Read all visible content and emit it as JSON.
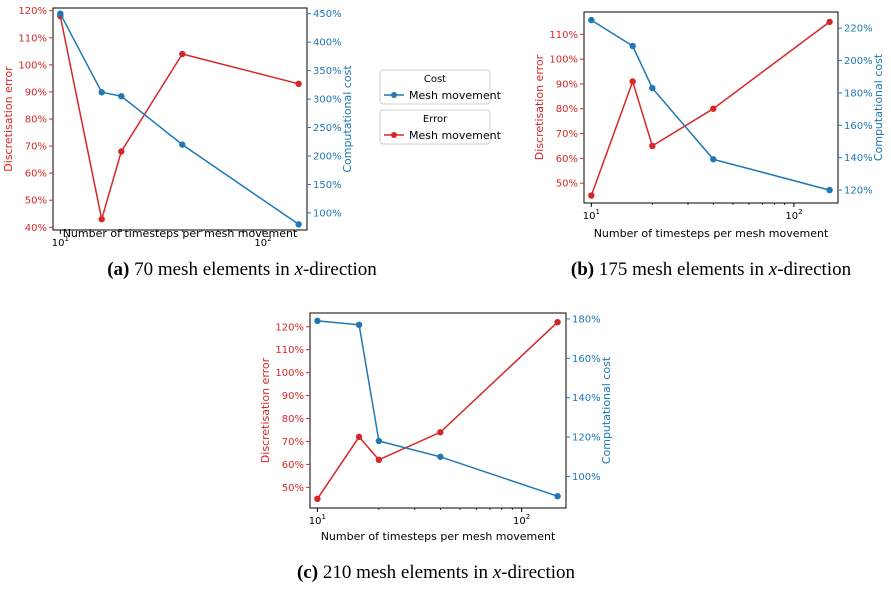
{
  "colors": {
    "error": "#d62728",
    "cost": "#1f77b4"
  },
  "legend": {
    "groups": [
      {
        "title": "Cost",
        "label": "Mesh movement",
        "series": "cost"
      },
      {
        "title": "Error",
        "label": "Mesh movement",
        "series": "error"
      }
    ]
  },
  "chart_data": [
    {
      "type": "line",
      "caption": {
        "tag": "(a)",
        "prefix": " 70 mesh elements in ",
        "italic": "x",
        "suffix": "-direction"
      },
      "xlabel": "Number of timesteps per mesh movement",
      "xscale": "log",
      "xlim": [
        9.2,
        165
      ],
      "xticks": [
        {
          "value": 10,
          "base": "10",
          "exp": "1"
        },
        {
          "value": 100,
          "base": "10",
          "exp": "2"
        }
      ],
      "ylabel_left": "Discretisation error",
      "ylabel_right": "Computational cost",
      "ylim_left": [
        39,
        121
      ],
      "ylim_right": [
        70,
        460
      ],
      "yticks_left": [
        40,
        50,
        60,
        70,
        80,
        90,
        100,
        110,
        120
      ],
      "yticks_right": [
        100,
        150,
        200,
        250,
        300,
        350,
        400,
        450
      ],
      "tick_suffix": "%",
      "x": [
        10,
        16,
        20,
        40,
        150
      ],
      "series": [
        {
          "key": "error",
          "axis": "left",
          "values": [
            118,
            43,
            68,
            104,
            93
          ]
        },
        {
          "key": "cost",
          "axis": "right",
          "values": [
            450,
            312,
            305,
            220,
            80
          ]
        }
      ]
    },
    {
      "type": "line",
      "caption": {
        "tag": "(b)",
        "prefix": " 175 mesh elements in ",
        "italic": "x",
        "suffix": "-direction"
      },
      "xlabel": "Number of timesteps per mesh movement",
      "xscale": "log",
      "xlim": [
        9.2,
        165
      ],
      "xticks": [
        {
          "value": 10,
          "base": "10",
          "exp": "1"
        },
        {
          "value": 100,
          "base": "10",
          "exp": "2"
        }
      ],
      "ylabel_left": "Discretisation error",
      "ylabel_right": "Computational cost",
      "ylim_left": [
        42,
        119
      ],
      "ylim_right": [
        112,
        230
      ],
      "yticks_left": [
        50,
        60,
        70,
        80,
        90,
        100,
        110
      ],
      "yticks_right": [
        120,
        140,
        160,
        180,
        200,
        220
      ],
      "tick_suffix": "%",
      "x": [
        10,
        16,
        20,
        40,
        150
      ],
      "series": [
        {
          "key": "error",
          "axis": "left",
          "values": [
            45,
            91,
            65,
            80,
            115
          ]
        },
        {
          "key": "cost",
          "axis": "right",
          "values": [
            225,
            209,
            183,
            139,
            120
          ]
        }
      ]
    },
    {
      "type": "line",
      "caption": {
        "tag": "(c)",
        "prefix": " 210 mesh elements in ",
        "italic": "x",
        "suffix": "-direction"
      },
      "xlabel": "Number of timesteps per mesh movement",
      "xscale": "log",
      "xlim": [
        9.2,
        165
      ],
      "xticks": [
        {
          "value": 10,
          "base": "10",
          "exp": "1"
        },
        {
          "value": 100,
          "base": "10",
          "exp": "2"
        }
      ],
      "ylabel_left": "Discretisation error",
      "ylabel_right": "Computational cost",
      "ylim_left": [
        41,
        126
      ],
      "ylim_right": [
        84,
        183
      ],
      "yticks_left": [
        50,
        60,
        70,
        80,
        90,
        100,
        110,
        120
      ],
      "yticks_right": [
        100,
        120,
        140,
        160,
        180
      ],
      "tick_suffix": "%",
      "x": [
        10,
        16,
        20,
        40,
        150
      ],
      "series": [
        {
          "key": "error",
          "axis": "left",
          "values": [
            45,
            72,
            62,
            74,
            122
          ]
        },
        {
          "key": "cost",
          "axis": "right",
          "values": [
            179,
            177,
            118,
            110,
            90
          ]
        }
      ]
    }
  ]
}
